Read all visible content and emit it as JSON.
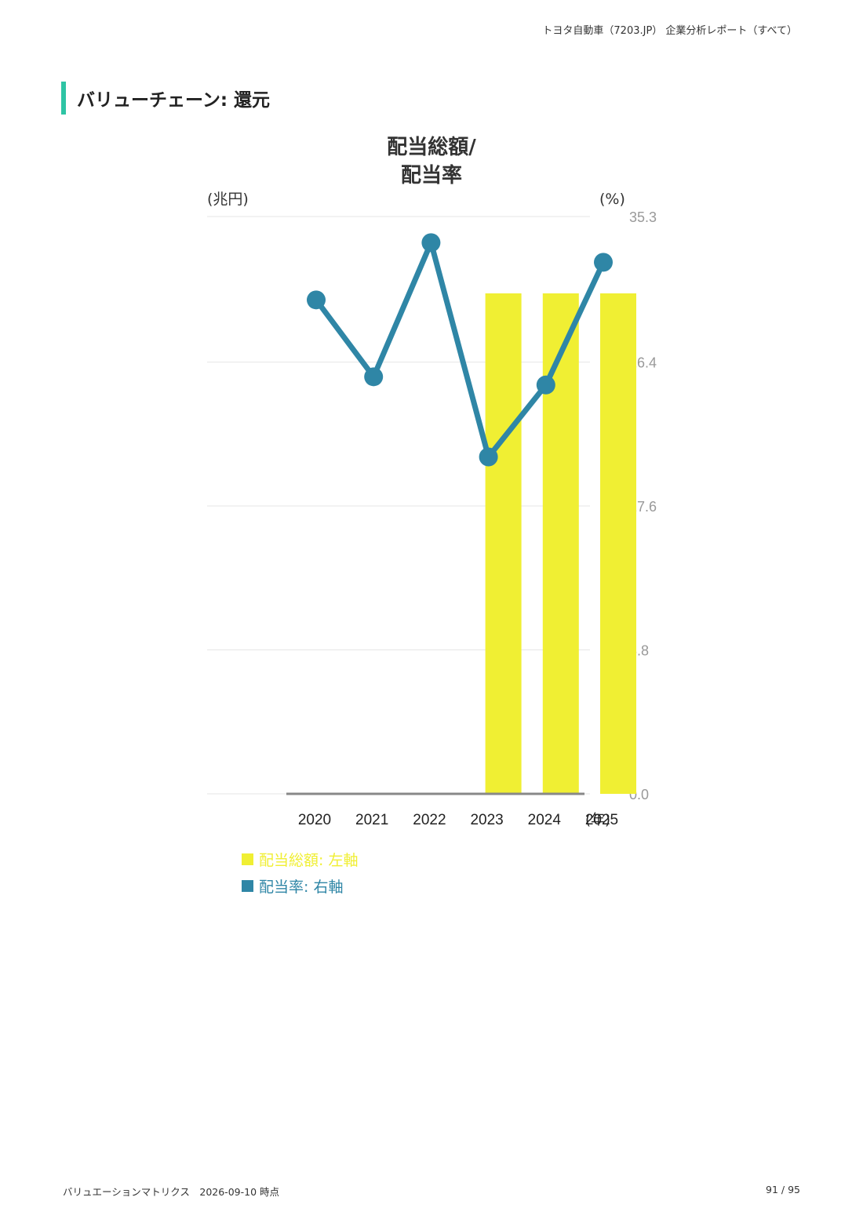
{
  "header": {
    "report_title": "トヨタ自動車（7203.JP） 企業分析レポート（すべて）"
  },
  "section": {
    "title": "バリューチェーン: 還元"
  },
  "colors": {
    "accent": "#2ec4a4",
    "bar": "#f0ef33",
    "line": "#2f86a6",
    "axis": "#888888",
    "grid": "#e6e6e6"
  },
  "chart_data": {
    "type": "bar",
    "title_line1": "配当総額/",
    "title_line2": "配当率",
    "left_axis_unit": "(兆円)",
    "right_axis_unit": "(%)",
    "x_axis_unit": "(年)",
    "categories": [
      "2020",
      "2021",
      "2022",
      "2023",
      "2024",
      "2025"
    ],
    "right_ticks": [
      "35.3",
      "26.4",
      "17.6",
      "8.8",
      "0.0"
    ],
    "right_ylim": [
      0,
      35.3
    ],
    "grid": true,
    "legend_placement": "bottom-left",
    "series": [
      {
        "name": "配当総額: 左軸",
        "kind": "bar",
        "axis": "left",
        "values": [
          null,
          null,
          null,
          30.6,
          30.6,
          30.6
        ]
      },
      {
        "name": "配当率: 右軸",
        "kind": "line",
        "axis": "right",
        "values": [
          30.2,
          25.5,
          33.7,
          20.6,
          25.0,
          32.5
        ]
      }
    ]
  },
  "footer": {
    "left": "バリュエーションマトリクス　2026-09-10 時点",
    "page": "91 / 95"
  }
}
